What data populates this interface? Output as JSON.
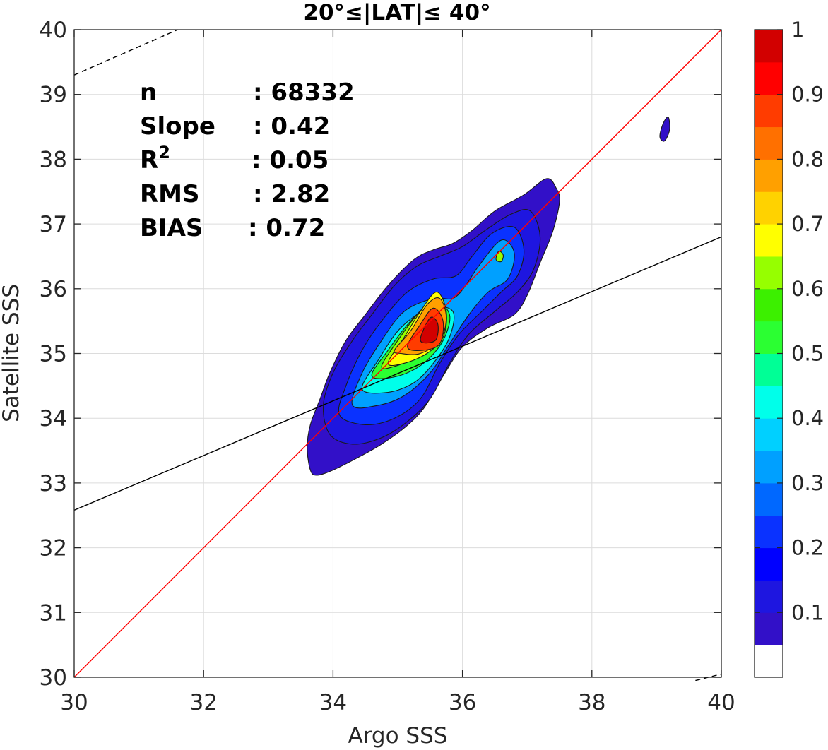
{
  "chart_data": {
    "type": "contour-density",
    "title": "20°≤|LAT|≤ 40°",
    "xlabel": "Argo SSS",
    "ylabel": "Satellite SSS",
    "xlim": [
      30,
      40
    ],
    "ylim": [
      30,
      40
    ],
    "xticks": [
      "30",
      "32",
      "34",
      "36",
      "38",
      "40"
    ],
    "yticks": [
      "30",
      "31",
      "32",
      "33",
      "34",
      "35",
      "36",
      "37",
      "38",
      "39",
      "40"
    ],
    "grid": true,
    "stats": [
      {
        "label": "n",
        "value": ": 68332"
      },
      {
        "label": "Slope",
        "value": ": 0.42"
      },
      {
        "label": "R",
        "sup": "2",
        "value": ": 0.05"
      },
      {
        "label": "RMS",
        "value": ": 2.82"
      },
      {
        "label": "BIAS",
        "value": ": 0.72"
      }
    ],
    "lines": [
      {
        "name": "one-to-one",
        "color": "#ff0000",
        "style": "solid",
        "points": [
          [
            30,
            30
          ],
          [
            40,
            40
          ]
        ]
      },
      {
        "name": "regression",
        "color": "#000000",
        "style": "solid",
        "points": [
          [
            30,
            32.58
          ],
          [
            40,
            36.8
          ]
        ]
      },
      {
        "name": "upper-bound",
        "color": "#000000",
        "style": "dashed",
        "points": [
          [
            30,
            39.3
          ],
          [
            31.6,
            40
          ]
        ]
      },
      {
        "name": "lower-bound",
        "color": "#000000",
        "style": "dashed",
        "points": [
          [
            39.6,
            29.95
          ],
          [
            40,
            30.05
          ]
        ]
      }
    ],
    "colorbar": {
      "ticks": [
        "0.1",
        "0.2",
        "0.3",
        "0.4",
        "0.5",
        "0.6",
        "0.7",
        "0.8",
        "0.9",
        "1"
      ],
      "tick_values": [
        0.1,
        0.2,
        0.3,
        0.4,
        0.5,
        0.6,
        0.7,
        0.8,
        0.9,
        1.0
      ],
      "levels": [
        0.0,
        0.05,
        0.1,
        0.15,
        0.2,
        0.25,
        0.3,
        0.35,
        0.4,
        0.45,
        0.5,
        0.55,
        0.6,
        0.65,
        0.7,
        0.75,
        0.8,
        0.85,
        0.9,
        0.95,
        1.0
      ],
      "colors": [
        "#ffffff",
        "#5a00aa",
        "#3210c8",
        "#1e16e0",
        "#0000ff",
        "#0a32ff",
        "#0068ff",
        "#00a0ff",
        "#00d0ff",
        "#00ffea",
        "#00ff96",
        "#2bff32",
        "#3cf000",
        "#96ff00",
        "#ffff00",
        "#ffd200",
        "#ffa000",
        "#ff7000",
        "#ff3c00",
        "#ff0000",
        "#d20000",
        "#8c0000"
      ]
    },
    "contours": [
      {
        "level": 0.05,
        "color": "#3210c8",
        "points": [
          [
            33.65,
            33.2
          ],
          [
            33.6,
            33.55
          ],
          [
            33.65,
            33.9
          ],
          [
            33.8,
            34.3
          ],
          [
            33.95,
            34.7
          ],
          [
            34.2,
            35.2
          ],
          [
            34.5,
            35.6
          ],
          [
            34.85,
            36.05
          ],
          [
            35.25,
            36.45
          ],
          [
            35.55,
            36.6
          ],
          [
            35.85,
            36.7
          ],
          [
            36.15,
            36.9
          ],
          [
            36.5,
            37.2
          ],
          [
            36.95,
            37.45
          ],
          [
            37.3,
            37.7
          ],
          [
            37.45,
            37.55
          ],
          [
            37.5,
            37.35
          ],
          [
            37.4,
            36.9
          ],
          [
            37.2,
            36.4
          ],
          [
            37.0,
            35.9
          ],
          [
            36.8,
            35.6
          ],
          [
            36.4,
            35.4
          ],
          [
            36.0,
            35.1
          ],
          [
            35.7,
            34.65
          ],
          [
            35.4,
            34.15
          ],
          [
            35.1,
            33.85
          ],
          [
            34.75,
            33.6
          ],
          [
            34.4,
            33.4
          ],
          [
            34.0,
            33.2
          ],
          [
            33.75,
            33.12
          ]
        ]
      },
      {
        "level": 0.1,
        "color": "#1e16e0",
        "points": [
          [
            33.85,
            34.2
          ],
          [
            34.0,
            34.7
          ],
          [
            34.3,
            35.2
          ],
          [
            34.6,
            35.6
          ],
          [
            34.95,
            36.05
          ],
          [
            35.3,
            36.35
          ],
          [
            35.65,
            36.5
          ],
          [
            36.0,
            36.65
          ],
          [
            36.35,
            36.9
          ],
          [
            36.75,
            37.15
          ],
          [
            37.05,
            37.2
          ],
          [
            37.2,
            36.8
          ],
          [
            37.1,
            36.3
          ],
          [
            36.85,
            35.95
          ],
          [
            36.5,
            35.65
          ],
          [
            36.1,
            35.3
          ],
          [
            35.8,
            34.85
          ],
          [
            35.5,
            34.3
          ],
          [
            35.15,
            33.95
          ],
          [
            34.75,
            33.7
          ],
          [
            34.3,
            33.6
          ],
          [
            33.95,
            33.75
          ]
        ]
      },
      {
        "level": 0.15,
        "color": "#0a32ff",
        "points": [
          [
            34.1,
            34.05
          ],
          [
            34.2,
            34.5
          ],
          [
            34.45,
            35.05
          ],
          [
            34.75,
            35.5
          ],
          [
            35.15,
            35.95
          ],
          [
            35.55,
            36.15
          ],
          [
            35.9,
            36.2
          ],
          [
            36.15,
            36.5
          ],
          [
            36.45,
            36.85
          ],
          [
            36.8,
            36.95
          ],
          [
            36.95,
            36.6
          ],
          [
            36.85,
            36.2
          ],
          [
            36.6,
            35.95
          ],
          [
            36.3,
            35.65
          ],
          [
            35.95,
            35.3
          ],
          [
            35.65,
            34.85
          ],
          [
            35.35,
            34.3
          ],
          [
            34.95,
            34.0
          ],
          [
            34.5,
            33.9
          ]
        ]
      },
      {
        "level": 0.2,
        "color": "#00a0ff",
        "points": [
          [
            34.3,
            34.2
          ],
          [
            34.45,
            34.7
          ],
          [
            34.75,
            35.2
          ],
          [
            35.1,
            35.65
          ],
          [
            35.55,
            35.85
          ],
          [
            35.85,
            35.85
          ],
          [
            36.05,
            36.05
          ],
          [
            36.25,
            36.35
          ],
          [
            36.6,
            36.75
          ],
          [
            36.8,
            36.55
          ],
          [
            36.7,
            36.15
          ],
          [
            36.4,
            35.95
          ],
          [
            36.1,
            35.6
          ],
          [
            35.8,
            35.15
          ],
          [
            35.5,
            34.7
          ],
          [
            35.1,
            34.35
          ],
          [
            34.7,
            34.2
          ]
        ]
      },
      {
        "level": 0.25,
        "color": "#00ffea",
        "points": [
          [
            34.45,
            34.45
          ],
          [
            34.7,
            34.9
          ],
          [
            35.05,
            35.4
          ],
          [
            35.5,
            35.7
          ],
          [
            35.85,
            35.65
          ],
          [
            35.8,
            35.25
          ],
          [
            35.55,
            34.85
          ],
          [
            35.25,
            34.55
          ],
          [
            34.85,
            34.4
          ]
        ]
      },
      {
        "level": 0.3,
        "color": "#2bff32",
        "points": [
          [
            34.6,
            34.65
          ],
          [
            34.85,
            35.05
          ],
          [
            35.2,
            35.5
          ],
          [
            35.55,
            35.8
          ],
          [
            35.8,
            35.6
          ],
          [
            35.7,
            35.2
          ],
          [
            35.4,
            34.85
          ],
          [
            35.0,
            34.65
          ]
        ]
      },
      {
        "level": 0.35,
        "color": "#96ff00",
        "points": [
          [
            34.75,
            34.8
          ],
          [
            35.0,
            35.2
          ],
          [
            35.3,
            35.6
          ],
          [
            35.6,
            35.85
          ],
          [
            35.75,
            35.55
          ],
          [
            35.6,
            35.2
          ],
          [
            35.3,
            34.95
          ],
          [
            34.95,
            34.8
          ]
        ]
      },
      {
        "level": 0.4,
        "color": "#ffff00",
        "points": [
          [
            34.85,
            34.85
          ],
          [
            35.1,
            35.25
          ],
          [
            35.35,
            35.65
          ],
          [
            35.6,
            35.95
          ],
          [
            35.75,
            35.65
          ],
          [
            35.7,
            35.25
          ],
          [
            35.45,
            35.0
          ],
          [
            35.1,
            34.85
          ]
        ]
      },
      {
        "level": 0.45,
        "color": "#ffa000",
        "points": [
          [
            34.95,
            35.05
          ],
          [
            35.2,
            35.35
          ],
          [
            35.45,
            35.75
          ],
          [
            35.65,
            35.85
          ],
          [
            35.75,
            35.55
          ],
          [
            35.65,
            35.2
          ],
          [
            35.35,
            35.0
          ],
          [
            35.05,
            35.0
          ]
        ]
      },
      {
        "level": 0.5,
        "color": "#ff3c00",
        "points": [
          [
            35.15,
            35.1
          ],
          [
            35.35,
            35.45
          ],
          [
            35.55,
            35.7
          ],
          [
            35.7,
            35.5
          ],
          [
            35.65,
            35.15
          ],
          [
            35.4,
            35.05
          ]
        ]
      },
      {
        "level": 0.55,
        "color": "#d20000",
        "points": [
          [
            35.35,
            35.2
          ],
          [
            35.5,
            35.55
          ],
          [
            35.62,
            35.45
          ],
          [
            35.58,
            35.2
          ]
        ]
      },
      {
        "level": 0.15,
        "color": "#96ff00",
        "points": [
          [
            36.52,
            36.45
          ],
          [
            36.56,
            36.58
          ],
          [
            36.63,
            36.52
          ],
          [
            36.6,
            36.42
          ]
        ]
      },
      {
        "level": 0.05,
        "color": "#3210c8",
        "points": [
          [
            39.05,
            38.35
          ],
          [
            39.1,
            38.55
          ],
          [
            39.18,
            38.65
          ],
          [
            39.2,
            38.45
          ],
          [
            39.12,
            38.28
          ]
        ]
      }
    ]
  }
}
